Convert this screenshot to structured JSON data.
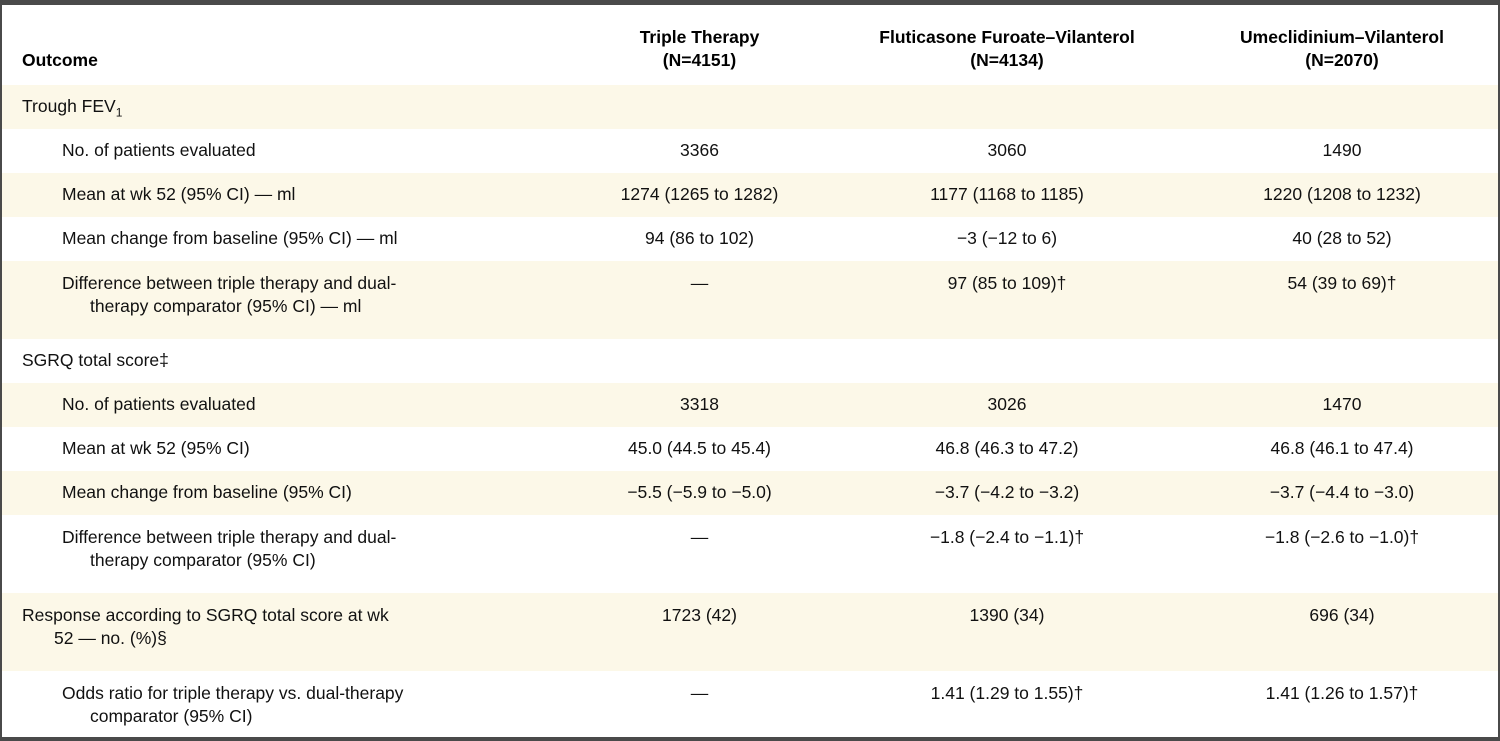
{
  "colors": {
    "row_stripe": "#FCF8E8",
    "table_border": "#4a4a4a",
    "text": "#111111"
  },
  "table": {
    "columns": [
      {
        "label": "Outcome",
        "n": ""
      },
      {
        "label": "Triple Therapy",
        "n": "(N=4151)"
      },
      {
        "label": "Fluticasone Furoate–Vilanterol",
        "n": "(N=4134)"
      },
      {
        "label": "Umeclidinium–Vilanterol",
        "n": "(N=2070)"
      }
    ],
    "rows": [
      {
        "label": "Trough FEV",
        "label_sub": "1",
        "values": [
          "",
          "",
          ""
        ]
      },
      {
        "label": "No. of patients evaluated",
        "values": [
          "3366",
          "3060",
          "1490"
        ]
      },
      {
        "label": "Mean at wk 52 (95% CI) — ml",
        "values": [
          "1274 (1265 to 1282)",
          "1177 (1168 to 1185)",
          "1220 (1208 to 1232)"
        ]
      },
      {
        "label": "Mean change from baseline (95% CI) — ml",
        "values": [
          "94 (86 to 102)",
          "−3 (−12 to 6)",
          "40 (28 to 52)"
        ]
      },
      {
        "label_line1": "Difference between triple therapy and dual-",
        "label_line2": "therapy comparator (95% CI) — ml",
        "values": [
          "—",
          "97 (85 to 109)†",
          "54 (39 to 69)†"
        ]
      },
      {
        "label": "SGRQ total score‡",
        "values": [
          "",
          "",
          ""
        ]
      },
      {
        "label": "No. of patients evaluated",
        "values": [
          "3318",
          "3026",
          "1470"
        ]
      },
      {
        "label": "Mean at wk 52 (95% CI)",
        "values": [
          "45.0 (44.5 to 45.4)",
          "46.8 (46.3 to 47.2)",
          "46.8 (46.1 to 47.4)"
        ]
      },
      {
        "label": "Mean change from baseline (95% CI)",
        "values": [
          "−5.5 (−5.9 to −5.0)",
          "−3.7 (−4.2 to −3.2)",
          "−3.7 (−4.4 to −3.0)"
        ]
      },
      {
        "label_line1": "Difference between triple therapy and dual-",
        "label_line2": "therapy comparator (95% CI)",
        "values": [
          "—",
          "−1.8 (−2.4 to −1.1)†",
          "−1.8 (−2.6 to −1.0)†"
        ]
      },
      {
        "label_line1": "Response according to SGRQ total score at wk",
        "label_line2": "52 — no. (%)§",
        "values": [
          "1723 (42)",
          "1390 (34)",
          "696 (34)"
        ]
      },
      {
        "label_line1": "Odds ratio for triple therapy vs. dual-therapy",
        "label_line2": "comparator (95% CI)",
        "values": [
          "—",
          "1.41 (1.29 to 1.55)†",
          "1.41 (1.26 to 1.57)†"
        ]
      }
    ]
  }
}
